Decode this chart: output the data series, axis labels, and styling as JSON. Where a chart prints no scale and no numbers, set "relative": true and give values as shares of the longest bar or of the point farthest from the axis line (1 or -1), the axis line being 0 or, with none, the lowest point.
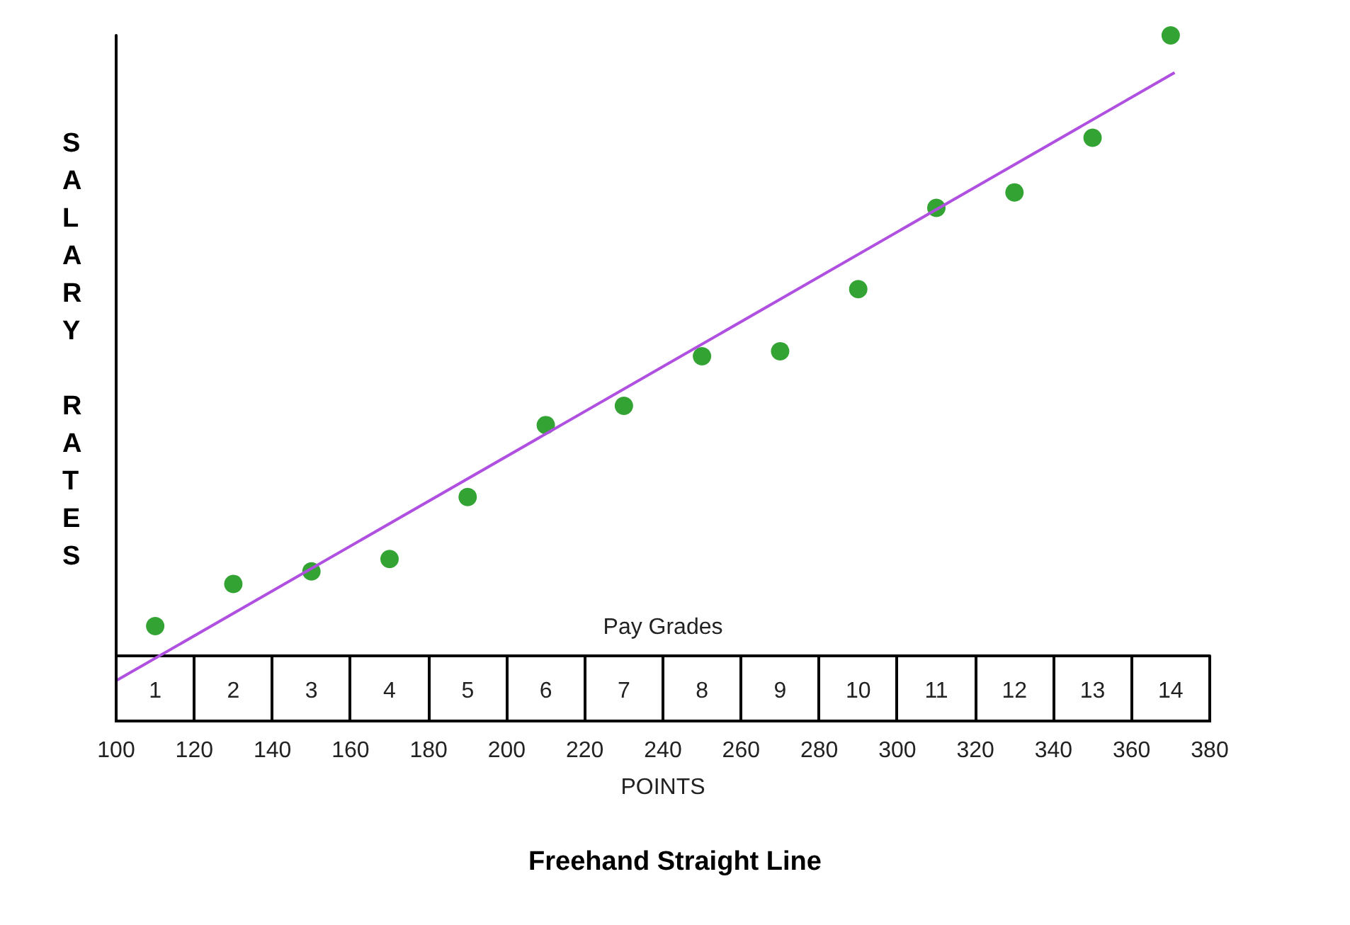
{
  "chart_data": {
    "type": "scatter",
    "title": "Freehand Straight Line",
    "xlabel": "POINTS",
    "ylabel": "SALARY RATES",
    "x2label": "Pay Grades",
    "relative": true,
    "x": [
      110,
      130,
      150,
      170,
      190,
      210,
      230,
      250,
      270,
      290,
      310,
      330,
      350,
      370
    ],
    "series": [
      {
        "color": "#008c00",
        "marker": "circle",
        "values": [
          0.048,
          0.116,
          0.136,
          0.156,
          0.256,
          0.372,
          0.403,
          0.483,
          0.491,
          0.591,
          0.722,
          0.747,
          0.835,
          1
        ]
      },
      {
        "type": "line",
        "color": "#b050e0",
        "marker": "none",
        "x": [
          100,
          371
        ],
        "values": [
          -0.04,
          0.94
        ]
      }
    ],
    "xlim": [
      100,
      380
    ],
    "xticks": [
      100,
      120,
      140,
      160,
      180,
      200,
      220,
      240,
      260,
      280,
      300,
      320,
      340,
      360,
      380
    ],
    "x2lim": [
      0.5,
      14.5
    ],
    "x2ticks": [
      1,
      2,
      3,
      4,
      5,
      6,
      7,
      8,
      9,
      10,
      11,
      12,
      13,
      14
    ],
    "grid": false
  }
}
